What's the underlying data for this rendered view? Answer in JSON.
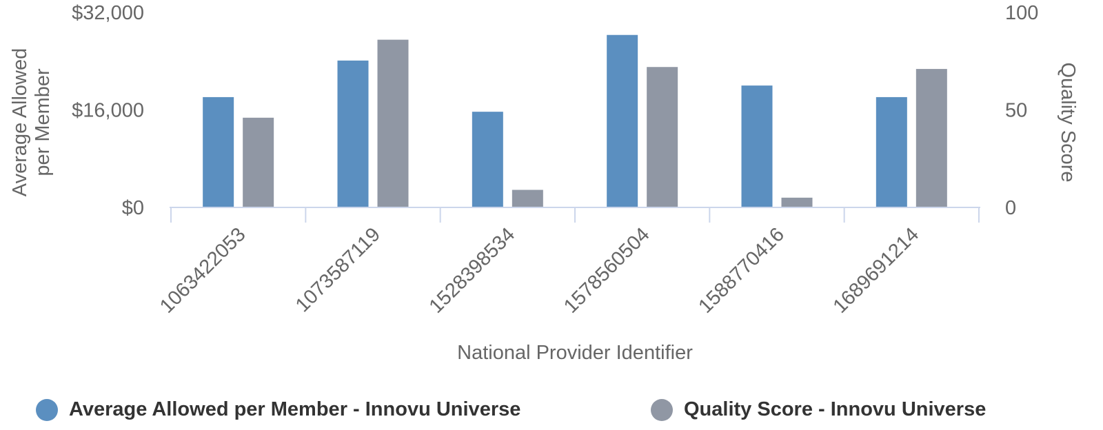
{
  "chart_data": {
    "type": "bar",
    "xlabel": "National Provider Identifier",
    "ylabel_left": "Average Allowed per Member",
    "ylabel_right": "Quality Score",
    "categories": [
      "1063422053",
      "1073587119",
      "1528398534",
      "1578560504",
      "1588770416",
      "1689691214"
    ],
    "y_left": {
      "min": 0,
      "max": 32000,
      "ticks": [
        0,
        16000,
        32000
      ],
      "tick_labels": [
        "$0",
        "$16,000",
        "$32,000"
      ]
    },
    "y_right": {
      "min": 0,
      "max": 100,
      "ticks": [
        0,
        50,
        100
      ],
      "tick_labels": [
        "0",
        "50",
        "100"
      ]
    },
    "series": [
      {
        "name": "Average Allowed per Member - Innovu Universe",
        "axis": "left",
        "color": "#5b8fc0",
        "values": [
          18100,
          24100,
          15700,
          28300,
          20000,
          18100
        ]
      },
      {
        "name": "Quality Score - Innovu Universe",
        "axis": "right",
        "color": "#9097a4",
        "values": [
          46,
          86,
          9,
          72,
          5,
          71
        ]
      }
    ],
    "grid": false,
    "legend_position": "bottom"
  }
}
